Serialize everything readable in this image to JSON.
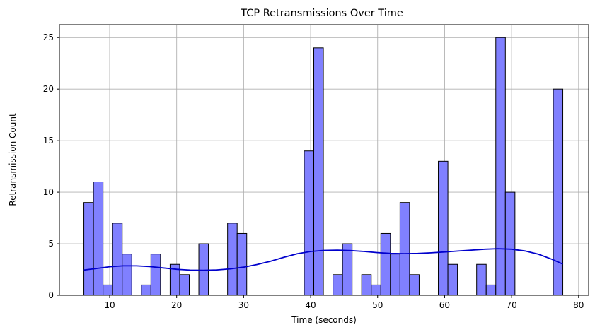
{
  "chart_data": {
    "type": "bar",
    "title": "TCP Retransmissions Over Time",
    "xlabel": "Time (seconds)",
    "ylabel": "Retransmission Count",
    "xlim": [
      2.5,
      81.5
    ],
    "ylim": [
      0,
      26.25
    ],
    "xticks": [
      10,
      20,
      30,
      40,
      50,
      60,
      70,
      80
    ],
    "yticks": [
      0,
      5,
      10,
      15,
      20,
      25
    ],
    "grid": true,
    "bin_width": 1.43,
    "bins": [
      {
        "start": 6.15,
        "count": 9
      },
      {
        "start": 7.58,
        "count": 11
      },
      {
        "start": 9.01,
        "count": 1
      },
      {
        "start": 10.44,
        "count": 7
      },
      {
        "start": 11.87,
        "count": 4
      },
      {
        "start": 14.73,
        "count": 1
      },
      {
        "start": 16.16,
        "count": 4
      },
      {
        "start": 19.02,
        "count": 3
      },
      {
        "start": 20.45,
        "count": 2
      },
      {
        "start": 23.31,
        "count": 5
      },
      {
        "start": 27.6,
        "count": 7
      },
      {
        "start": 29.03,
        "count": 6
      },
      {
        "start": 39.04,
        "count": 14
      },
      {
        "start": 40.47,
        "count": 24
      },
      {
        "start": 43.33,
        "count": 2
      },
      {
        "start": 44.76,
        "count": 5
      },
      {
        "start": 47.62,
        "count": 2
      },
      {
        "start": 49.05,
        "count": 1
      },
      {
        "start": 50.48,
        "count": 6
      },
      {
        "start": 51.91,
        "count": 4
      },
      {
        "start": 53.34,
        "count": 9
      },
      {
        "start": 54.77,
        "count": 2
      },
      {
        "start": 59.06,
        "count": 13
      },
      {
        "start": 60.49,
        "count": 3
      },
      {
        "start": 64.78,
        "count": 3
      },
      {
        "start": 66.21,
        "count": 1
      },
      {
        "start": 67.64,
        "count": 25
      },
      {
        "start": 69.07,
        "count": 10
      },
      {
        "start": 76.22,
        "count": 20
      }
    ],
    "kde": {
      "x": [
        6.15,
        8.0,
        10.0,
        12.0,
        14.0,
        16.0,
        18.0,
        20.0,
        22.0,
        24.0,
        26.0,
        28.0,
        30.0,
        32.0,
        34.0,
        36.0,
        38.0,
        40.0,
        42.0,
        44.0,
        46.0,
        48.0,
        50.0,
        52.0,
        54.0,
        56.0,
        58.0,
        60.0,
        62.0,
        64.0,
        66.0,
        68.0,
        70.0,
        72.0,
        74.0,
        76.0,
        77.65
      ],
      "y": [
        2.45,
        2.6,
        2.77,
        2.85,
        2.85,
        2.78,
        2.65,
        2.52,
        2.44,
        2.42,
        2.46,
        2.56,
        2.73,
        2.98,
        3.3,
        3.68,
        4.02,
        4.25,
        4.35,
        4.38,
        4.33,
        4.25,
        4.14,
        4.06,
        4.04,
        4.06,
        4.12,
        4.2,
        4.29,
        4.38,
        4.47,
        4.52,
        4.47,
        4.3,
        3.98,
        3.5,
        3.03
      ]
    },
    "colors": {
      "bar_fill": "#8080ff",
      "bar_edge": "#000000",
      "kde_line": "#0000cc",
      "grid": "#b0b0b0"
    }
  }
}
